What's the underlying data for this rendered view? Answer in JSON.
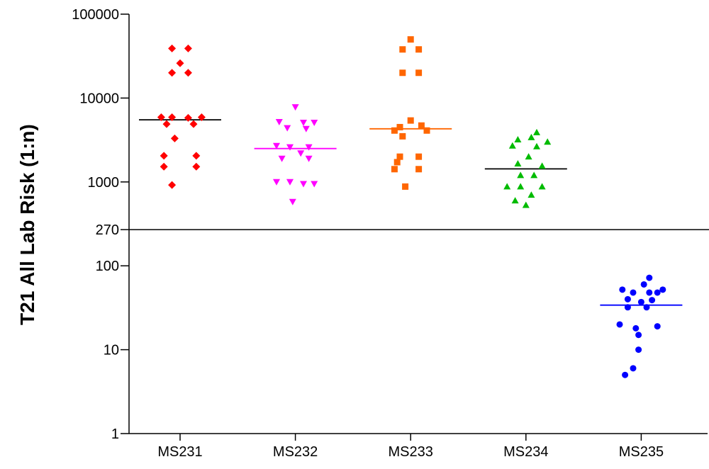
{
  "chart_data": {
    "type": "scatter",
    "ylabel": "T21 All Lab Risk (1:n)",
    "xlabel": "",
    "title": "",
    "yscale": "log",
    "ylim": [
      1,
      100000
    ],
    "yticks": [
      {
        "value": 1,
        "label": "1"
      },
      {
        "value": 10,
        "label": "10"
      },
      {
        "value": 100,
        "label": "100"
      },
      {
        "value": 270,
        "label": "270"
      },
      {
        "value": 1000,
        "label": "1000"
      },
      {
        "value": 10000,
        "label": "10000"
      },
      {
        "value": 100000,
        "label": "100000"
      }
    ],
    "cutoff": 270,
    "categories": [
      "MS231",
      "MS232",
      "MS233",
      "MS234",
      "MS235"
    ],
    "series": [
      {
        "category": "MS231",
        "marker": "diamond",
        "color": "#ff0000",
        "median_color": "#000000",
        "median": 5500,
        "points": [
          [
            -0.3,
            39000
          ],
          [
            0.3,
            39000
          ],
          [
            0,
            26000
          ],
          [
            -0.3,
            20000
          ],
          [
            0.3,
            20000
          ],
          [
            -0.7,
            5900
          ],
          [
            -0.3,
            5900
          ],
          [
            0.3,
            5800
          ],
          [
            0.8,
            5900
          ],
          [
            -0.5,
            4900
          ],
          [
            0.5,
            4900
          ],
          [
            -0.2,
            3300
          ],
          [
            -0.6,
            2050
          ],
          [
            0.6,
            2050
          ],
          [
            -0.6,
            1520
          ],
          [
            0.6,
            1520
          ],
          [
            -0.3,
            920
          ]
        ]
      },
      {
        "category": "MS232",
        "marker": "triangle-down",
        "color": "#ff00ff",
        "median_color": "#ff00ff",
        "median": 2500,
        "points": [
          [
            0,
            7800
          ],
          [
            -0.6,
            5200
          ],
          [
            0.3,
            5100
          ],
          [
            0.7,
            5100
          ],
          [
            -0.3,
            4400
          ],
          [
            0.4,
            4300
          ],
          [
            -0.7,
            2700
          ],
          [
            -0.2,
            2600
          ],
          [
            0.5,
            2600
          ],
          [
            0.2,
            2200
          ],
          [
            -0.5,
            1900
          ],
          [
            0.5,
            1900
          ],
          [
            -0.7,
            1000
          ],
          [
            -0.2,
            1000
          ],
          [
            0.3,
            950
          ],
          [
            0.7,
            950
          ],
          [
            -0.1,
            580
          ]
        ]
      },
      {
        "category": "MS233",
        "marker": "square",
        "color": "#ff6600",
        "median_color": "#ff6600",
        "median": 4300,
        "points": [
          [
            0,
            50000
          ],
          [
            -0.3,
            38000
          ],
          [
            0.3,
            38000
          ],
          [
            -0.3,
            20000
          ],
          [
            0.3,
            20000
          ],
          [
            0,
            5400
          ],
          [
            -0.4,
            4500
          ],
          [
            0.4,
            4700
          ],
          [
            -0.6,
            4100
          ],
          [
            0.6,
            4100
          ],
          [
            -0.3,
            3500
          ],
          [
            -0.4,
            2000
          ],
          [
            0.3,
            2000
          ],
          [
            -0.6,
            1420
          ],
          [
            0.3,
            1420
          ],
          [
            -0.5,
            1720
          ],
          [
            -0.2,
            880
          ]
        ]
      },
      {
        "category": "MS234",
        "marker": "triangle-up",
        "color": "#00bb00",
        "median_color": "#000000",
        "median": 1430,
        "points": [
          [
            0.4,
            3900
          ],
          [
            0.2,
            3400
          ],
          [
            -0.3,
            3200
          ],
          [
            0.8,
            3000
          ],
          [
            -0.5,
            2700
          ],
          [
            0.4,
            2650
          ],
          [
            0.1,
            2000
          ],
          [
            -0.3,
            1650
          ],
          [
            0.6,
            1550
          ],
          [
            -0.2,
            1200
          ],
          [
            0.3,
            1200
          ],
          [
            -0.7,
            880
          ],
          [
            -0.2,
            880
          ],
          [
            0.6,
            880
          ],
          [
            0.2,
            700
          ],
          [
            -0.4,
            600
          ],
          [
            0,
            530
          ]
        ]
      },
      {
        "category": "MS235",
        "marker": "circle",
        "color": "#0000ff",
        "median_color": "#0000ff",
        "median": 34,
        "points": [
          [
            0.3,
            72
          ],
          [
            0.1,
            60
          ],
          [
            -0.7,
            52
          ],
          [
            0.8,
            52
          ],
          [
            -0.3,
            48
          ],
          [
            0.3,
            48
          ],
          [
            0.6,
            48
          ],
          [
            -0.5,
            40
          ],
          [
            0.4,
            39
          ],
          [
            0,
            37
          ],
          [
            -0.5,
            32
          ],
          [
            0.2,
            32
          ],
          [
            -0.8,
            20
          ],
          [
            0.6,
            19
          ],
          [
            -0.2,
            18
          ],
          [
            -0.1,
            15
          ],
          [
            -0.1,
            10
          ],
          [
            -0.3,
            6
          ],
          [
            -0.6,
            5
          ]
        ]
      }
    ]
  }
}
